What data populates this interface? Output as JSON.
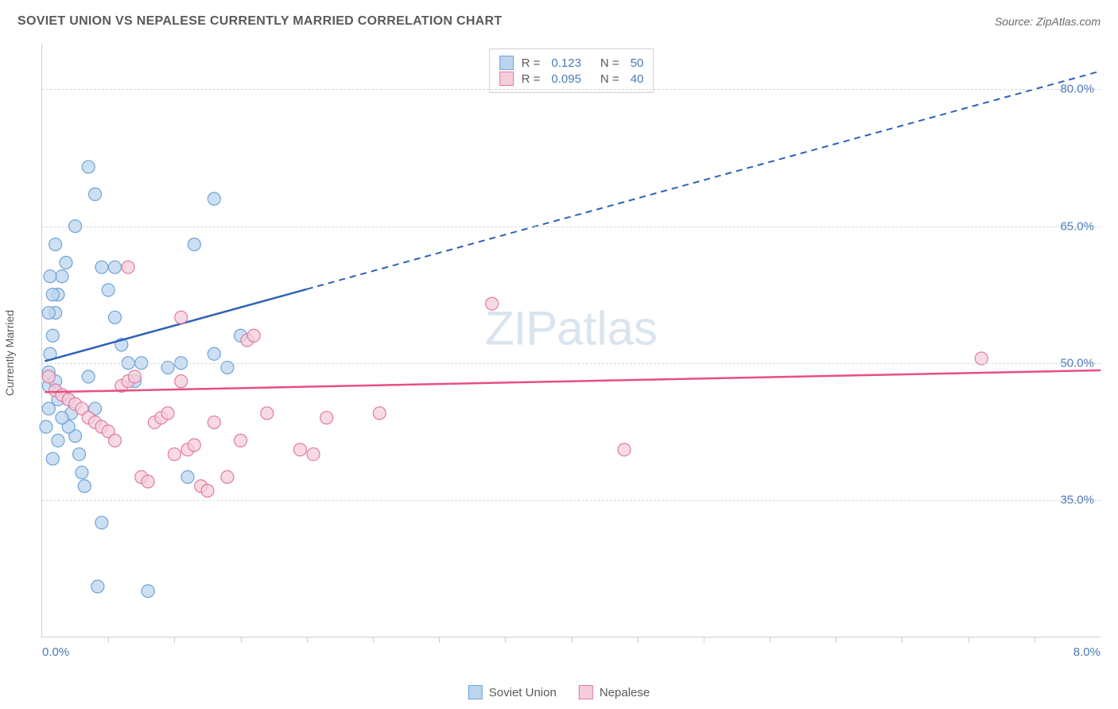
{
  "title": "SOVIET UNION VS NEPALESE CURRENTLY MARRIED CORRELATION CHART",
  "source_label": "Source: ZipAtlas.com",
  "watermark": {
    "zip": "ZIP",
    "atlas": "atlas"
  },
  "chart": {
    "type": "scatter",
    "background_color": "#ffffff",
    "grid_color": "#d8d8d8",
    "axis_color": "#cfcfcf",
    "label_color": "#5a5a5a",
    "value_color": "#4a7ab8",
    "ylabel": "Currently Married",
    "xlim": [
      0.0,
      8.0
    ],
    "ylim": [
      20.0,
      85.0
    ],
    "x_tick_labels": {
      "left": "0.0%",
      "right": "8.0%"
    },
    "x_minor_ticks": [
      0.5,
      1.0,
      1.5,
      2.0,
      2.5,
      3.0,
      3.5,
      4.0,
      4.5,
      5.0,
      5.5,
      6.0,
      6.5,
      7.0,
      7.5
    ],
    "y_gridlines": [
      {
        "y": 35.0,
        "label": "35.0%"
      },
      {
        "y": 50.0,
        "label": "50.0%"
      },
      {
        "y": 65.0,
        "label": "65.0%"
      },
      {
        "y": 80.0,
        "label": "80.0%"
      }
    ],
    "series": [
      {
        "name": "Soviet Union",
        "marker_fill": "#bcd5ef",
        "marker_stroke": "#6fa3d6",
        "marker_radius": 8,
        "marker_opacity": 0.75,
        "line_color": "#2f62b5",
        "line_width": 2.5,
        "regression": {
          "x1": 0.02,
          "y1": 50.2,
          "x2": 8.0,
          "y2": 82.0,
          "solid_until_x": 2.0
        },
        "stats": {
          "R": "0.123",
          "N": "50"
        },
        "points": [
          [
            0.05,
            47.5
          ],
          [
            0.05,
            49.0
          ],
          [
            0.06,
            51.0
          ],
          [
            0.08,
            53.0
          ],
          [
            0.1,
            55.5
          ],
          [
            0.12,
            57.5
          ],
          [
            0.15,
            59.5
          ],
          [
            0.18,
            61.0
          ],
          [
            0.2,
            46.0
          ],
          [
            0.22,
            44.5
          ],
          [
            0.25,
            42.0
          ],
          [
            0.28,
            40.0
          ],
          [
            0.3,
            38.0
          ],
          [
            0.32,
            36.5
          ],
          [
            0.35,
            71.5
          ],
          [
            0.25,
            65.0
          ],
          [
            0.4,
            68.5
          ],
          [
            0.1,
            63.0
          ],
          [
            0.45,
            60.5
          ],
          [
            0.5,
            58.0
          ],
          [
            0.55,
            55.0
          ],
          [
            0.6,
            52.0
          ],
          [
            0.65,
            50.0
          ],
          [
            0.42,
            25.5
          ],
          [
            0.8,
            25.0
          ],
          [
            0.45,
            32.5
          ],
          [
            0.2,
            43.0
          ],
          [
            0.08,
            39.5
          ],
          [
            0.12,
            41.5
          ],
          [
            0.05,
            45.0
          ],
          [
            0.7,
            48.0
          ],
          [
            0.75,
            50.0
          ],
          [
            0.4,
            45.0
          ],
          [
            0.35,
            48.5
          ],
          [
            0.55,
            60.5
          ],
          [
            0.95,
            49.5
          ],
          [
            1.05,
            50.0
          ],
          [
            1.1,
            37.5
          ],
          [
            1.15,
            63.0
          ],
          [
            1.3,
            68.0
          ],
          [
            1.3,
            51.0
          ],
          [
            1.4,
            49.5
          ],
          [
            1.5,
            53.0
          ],
          [
            0.05,
            55.5
          ],
          [
            0.08,
            57.5
          ],
          [
            0.06,
            59.5
          ],
          [
            0.1,
            48.0
          ],
          [
            0.12,
            46.0
          ],
          [
            0.15,
            44.0
          ],
          [
            0.03,
            43.0
          ]
        ]
      },
      {
        "name": "Nepalese",
        "marker_fill": "#f5cdd9",
        "marker_stroke": "#df7ba0",
        "marker_radius": 8,
        "marker_opacity": 0.75,
        "line_color": "#e84f7d",
        "line_width": 2.5,
        "regression": {
          "x1": 0.02,
          "y1": 46.8,
          "x2": 8.0,
          "y2": 49.2,
          "solid_until_x": 8.0
        },
        "stats": {
          "R": "0.095",
          "N": "40"
        },
        "points": [
          [
            0.1,
            47.0
          ],
          [
            0.15,
            46.5
          ],
          [
            0.2,
            46.0
          ],
          [
            0.25,
            45.5
          ],
          [
            0.3,
            45.0
          ],
          [
            0.35,
            44.0
          ],
          [
            0.4,
            43.5
          ],
          [
            0.45,
            43.0
          ],
          [
            0.5,
            42.5
          ],
          [
            0.55,
            41.5
          ],
          [
            0.6,
            47.5
          ],
          [
            0.65,
            48.0
          ],
          [
            0.7,
            48.5
          ],
          [
            0.75,
            37.5
          ],
          [
            0.8,
            37.0
          ],
          [
            0.85,
            43.5
          ],
          [
            0.9,
            44.0
          ],
          [
            0.95,
            44.5
          ],
          [
            1.0,
            40.0
          ],
          [
            1.05,
            48.0
          ],
          [
            1.1,
            40.5
          ],
          [
            1.15,
            41.0
          ],
          [
            1.2,
            36.5
          ],
          [
            1.25,
            36.0
          ],
          [
            1.3,
            43.5
          ],
          [
            1.4,
            37.5
          ],
          [
            1.5,
            41.5
          ],
          [
            1.55,
            52.5
          ],
          [
            1.6,
            53.0
          ],
          [
            1.7,
            44.5
          ],
          [
            1.05,
            55.0
          ],
          [
            0.65,
            60.5
          ],
          [
            1.95,
            40.5
          ],
          [
            2.05,
            40.0
          ],
          [
            2.15,
            44.0
          ],
          [
            2.55,
            44.5
          ],
          [
            3.4,
            56.5
          ],
          [
            4.4,
            40.5
          ],
          [
            7.1,
            50.5
          ],
          [
            0.05,
            48.5
          ]
        ]
      }
    ],
    "legend_top": [
      {
        "swatch_fill": "#bcd5ef",
        "swatch_stroke": "#6fa3d6",
        "R": "0.123",
        "N": "50"
      },
      {
        "swatch_fill": "#f5cdd9",
        "swatch_stroke": "#df7ba0",
        "R": "0.095",
        "N": "40"
      }
    ],
    "legend_bottom": [
      {
        "swatch_fill": "#bcd5ef",
        "swatch_stroke": "#6fa3d6",
        "label": "Soviet Union"
      },
      {
        "swatch_fill": "#f5cdd9",
        "swatch_stroke": "#df7ba0",
        "label": "Nepalese"
      }
    ]
  }
}
